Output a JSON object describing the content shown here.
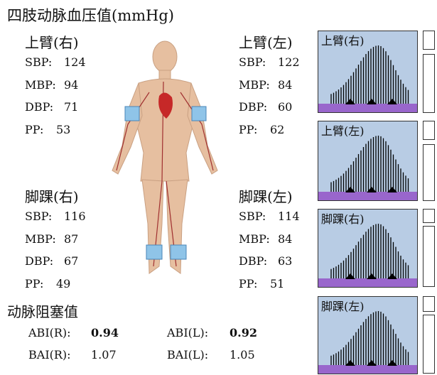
{
  "title": "四肢动脉血压值(mmHg)",
  "sections": [
    {
      "label": "上臂(右)",
      "rows": [
        {
          "label": "SBP:",
          "value": 124
        },
        {
          "label": "MBP:",
          "value": 94
        },
        {
          "label": "DBP:",
          "value": 71
        },
        {
          "label": "PP:",
          "value": 53
        }
      ]
    },
    {
      "label": "上臂(左)",
      "rows": [
        {
          "label": "SBP:",
          "value": 122
        },
        {
          "label": "MBP:",
          "value": 84
        },
        {
          "label": "DBP:",
          "value": 60
        },
        {
          "label": "PP:",
          "value": 62
        }
      ]
    },
    {
      "label": "脚踝(右)",
      "rows": [
        {
          "label": "SBP:",
          "value": 116
        },
        {
          "label": "MBP:",
          "value": 87
        },
        {
          "label": "DBP:",
          "value": 67
        },
        {
          "label": "PP:",
          "value": 49
        }
      ]
    },
    {
      "label": "脚踝(左)",
      "rows": [
        {
          "label": "SBP:",
          "value": 114
        },
        {
          "label": "MBP:",
          "value": 84
        },
        {
          "label": "DBP:",
          "value": 63
        },
        {
          "label": "PP:",
          "value": 51
        }
      ]
    }
  ],
  "obstruction": {
    "title": "动脉阻塞值",
    "items": [
      {
        "label": "ABI(R):",
        "value": 0.94
      },
      {
        "label": "ABI(L):",
        "value": 0.92
      },
      {
        "label": "BAI(R):",
        "value": 1.07
      },
      {
        "label": "BAI(L):",
        "value": 1.05
      }
    ]
  },
  "waveform_panels": [
    {
      "label": "上臂(右)"
    },
    {
      "label": "上臂(左)"
    },
    {
      "label": "脚踝(右)"
    },
    {
      "label": "脚踝(左)"
    }
  ]
}
